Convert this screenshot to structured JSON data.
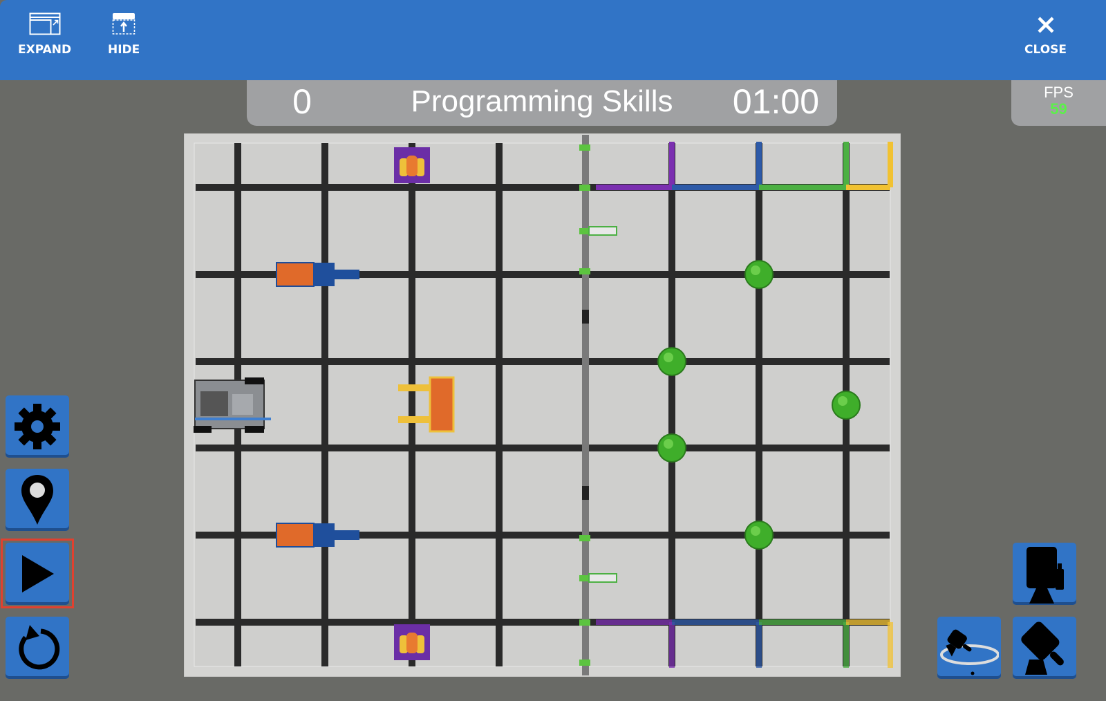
{
  "toolbar": {
    "expand_label": "EXPAND",
    "hide_label": "HIDE",
    "close_label": "CLOSE"
  },
  "scoreboard": {
    "score": "0",
    "mode": "Programming Skills",
    "timer": "01:00"
  },
  "fps": {
    "label": "FPS",
    "value": "59"
  },
  "left_controls": [
    "gear-icon",
    "location-pin-icon",
    "play-icon",
    "reset-icon"
  ],
  "camera_controls": [
    "top-camera-icon",
    "orbit-camera-icon",
    "chase-camera-icon"
  ],
  "colors": {
    "header": "#3174c6",
    "background": "#696a66",
    "selected": "#e0412f",
    "fps_value": "#5cf04a",
    "ball": "#3fae2a"
  }
}
